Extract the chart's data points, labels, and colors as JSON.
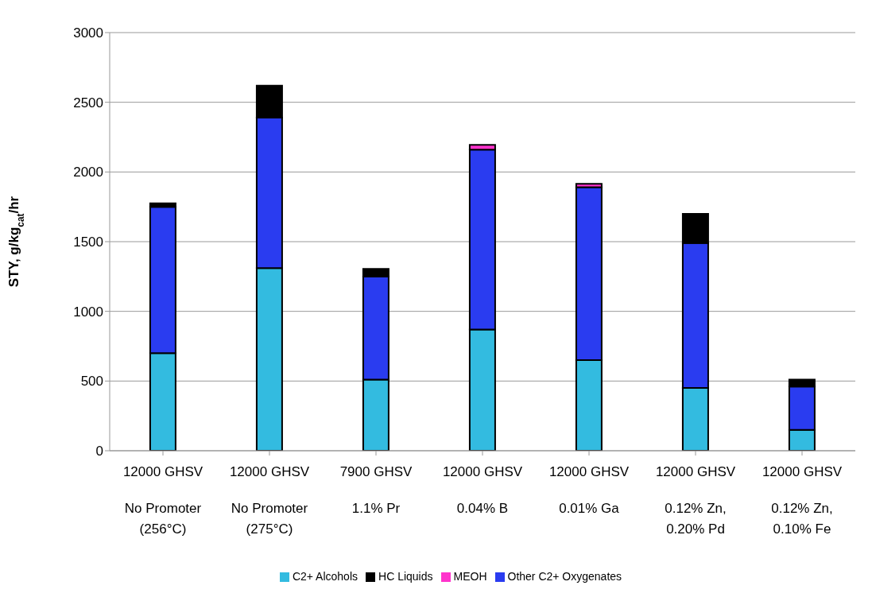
{
  "chart_data": {
    "type": "bar",
    "stacked": true,
    "ylabel": "STY, g/kg$_{cat}$/hr",
    "categories": [
      "12000 GHSV\nNo Promoter (256°C)",
      "12000 GHSV\nNo Promoter (275°C)",
      "7900 GHSV\n1.1% Pr",
      "12000 GHSV\n0.04% B",
      "12000 GHSV\n0.01% Ga",
      "12000 GHSV\n0.12% Zn, 0.20% Pd",
      "12000 GHSV\n0.12% Zn, 0.10% Fe"
    ],
    "series": [
      {
        "name": "C2+ Alcohols",
        "color": "#33bbe0",
        "values": [
          700,
          1310,
          510,
          870,
          650,
          450,
          150
        ]
      },
      {
        "name": "Other C2+ Oxygenates",
        "color": "#2a3cf0",
        "values": [
          1050,
          1080,
          740,
          1290,
          1240,
          1040,
          310
        ]
      },
      {
        "name": "MEOH",
        "color": "#ff33cc",
        "values": [
          0,
          0,
          0,
          35,
          25,
          0,
          0
        ]
      },
      {
        "name": "HC Liquids",
        "color": "#000000",
        "values": [
          25,
          230,
          55,
          0,
          0,
          210,
          50
        ]
      }
    ],
    "ylim": [
      0,
      3000
    ],
    "yticks": [
      0,
      500,
      1000,
      1500,
      2000,
      2500,
      3000
    ],
    "grid": "y",
    "legend": "bottom"
  }
}
